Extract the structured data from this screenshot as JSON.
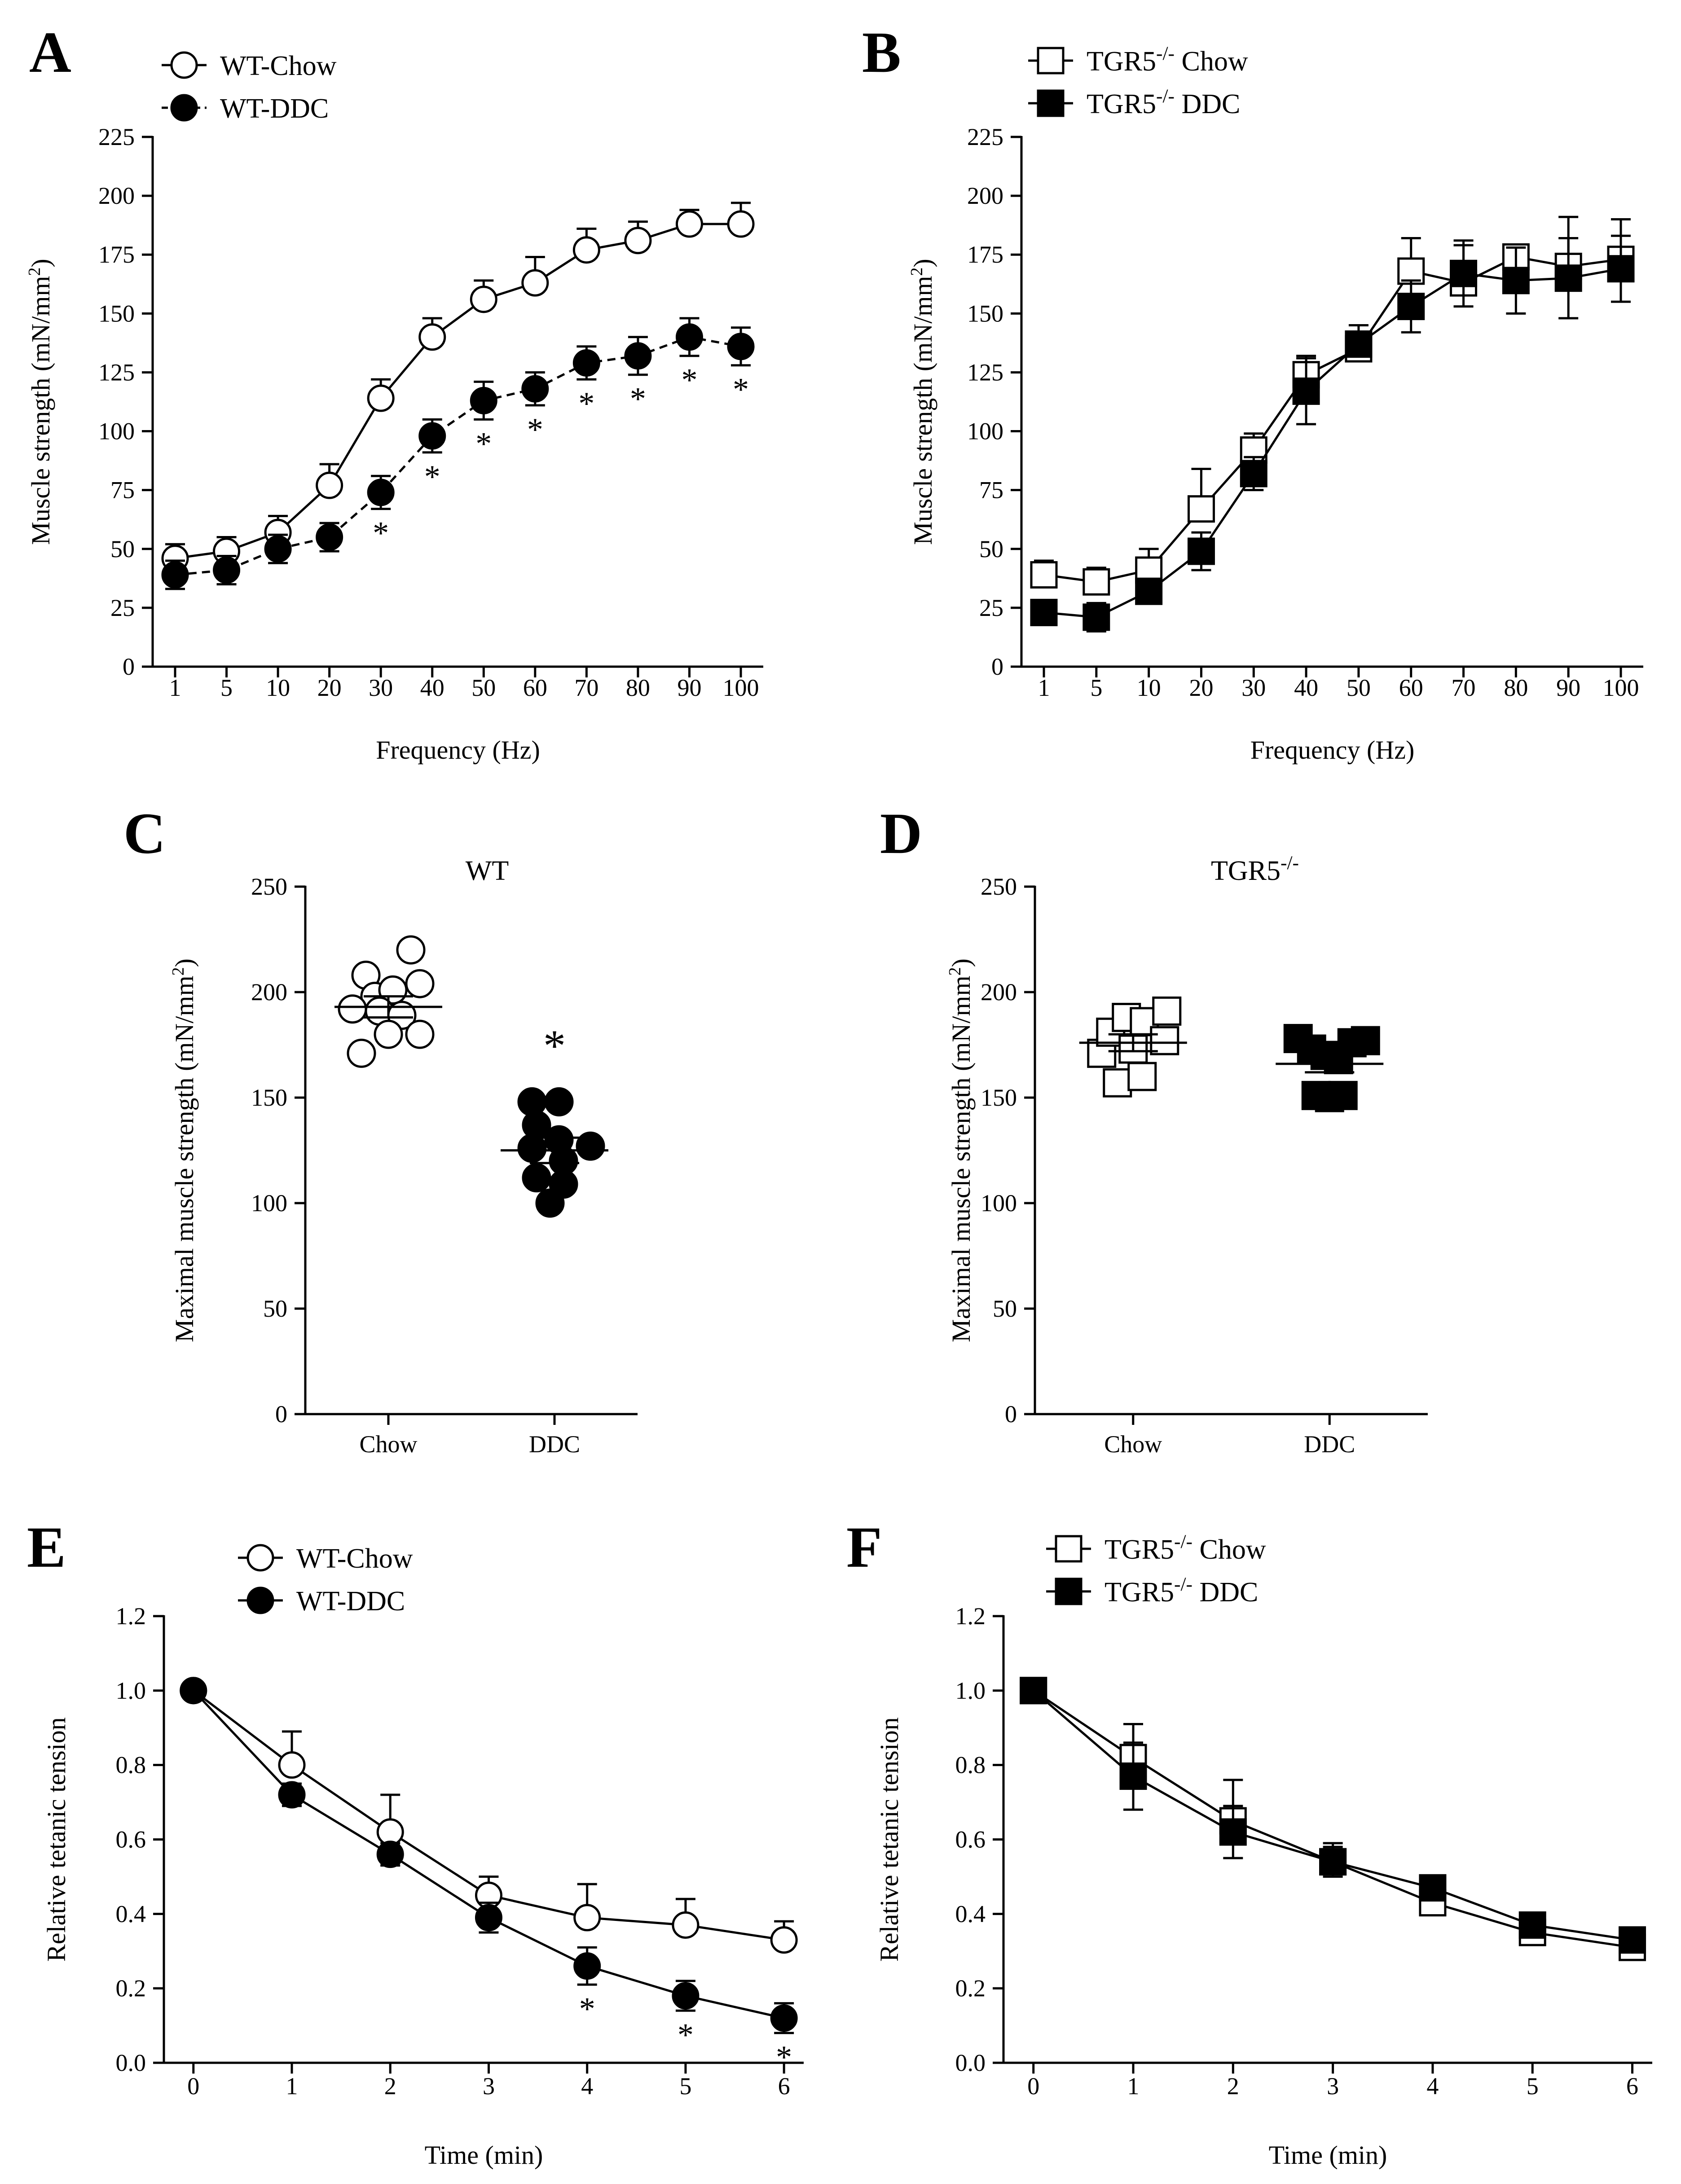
{
  "chart_data": [
    {
      "panel": "A",
      "type": "line",
      "title": "",
      "xlabel": "Frequency (Hz)",
      "ylabel": "Muscle strength (mN/mm²)",
      "categories": [
        "1",
        "5",
        "10",
        "20",
        "30",
        "40",
        "50",
        "60",
        "70",
        "80",
        "90",
        "100"
      ],
      "ylim": [
        0,
        225
      ],
      "yticks": [
        0,
        25,
        50,
        75,
        100,
        125,
        150,
        175,
        200,
        225
      ],
      "legend_position": "top-left",
      "series": [
        {
          "name": "WT-Chow",
          "marker": "circle",
          "fill": "#ffffff",
          "line": "solid",
          "values": [
            46,
            49,
            57,
            77,
            114,
            140,
            156,
            163,
            177,
            181,
            188,
            188
          ],
          "errors": [
            6,
            6,
            7,
            9,
            8,
            8,
            8,
            11,
            9,
            8,
            6,
            9
          ]
        },
        {
          "name": "WT-DDC",
          "marker": "circle",
          "fill": "#000000",
          "line": "dashed",
          "values": [
            39,
            41,
            50,
            55,
            74,
            98,
            113,
            118,
            129,
            132,
            140,
            136
          ],
          "errors": [
            6,
            6,
            6,
            6,
            7,
            7,
            8,
            7,
            7,
            8,
            8,
            8
          ]
        }
      ],
      "significance": {
        "series": "WT-DDC",
        "marker": "*",
        "categories": [
          "30",
          "40",
          "50",
          "60",
          "70",
          "80",
          "90",
          "100"
        ]
      }
    },
    {
      "panel": "B",
      "type": "line",
      "title": "",
      "xlabel": "Frequency (Hz)",
      "ylabel": "Muscle strength (mN/mm²)",
      "categories": [
        "1",
        "5",
        "10",
        "20",
        "30",
        "40",
        "50",
        "60",
        "70",
        "80",
        "90",
        "100"
      ],
      "ylim": [
        0,
        225
      ],
      "yticks": [
        0,
        25,
        50,
        75,
        100,
        125,
        150,
        175,
        200,
        225
      ],
      "legend_position": "top-left",
      "series": [
        {
          "name": "TGR5-/- Chow",
          "marker": "square",
          "fill": "#ffffff",
          "line": "solid",
          "values": [
            39,
            36,
            41,
            67,
            92,
            124,
            135,
            168,
            163,
            174,
            170,
            173
          ],
          "errors": [
            6,
            6,
            9,
            17,
            7,
            8,
            10,
            14,
            16,
            5,
            21,
            17
          ]
        },
        {
          "name": "TGR5-/- DDC",
          "marker": "square",
          "fill": "#000000",
          "line": "solid",
          "values": [
            23,
            21,
            32,
            49,
            82,
            117,
            137,
            153,
            167,
            164,
            165,
            169
          ],
          "errors": [
            3,
            6,
            5,
            8,
            7,
            14,
            5,
            11,
            14,
            14,
            17,
            14
          ]
        }
      ]
    },
    {
      "panel": "C",
      "type": "scatter",
      "title": "WT",
      "xlabel": "",
      "ylabel": "Maximal muscle strength (mN/mm²)",
      "categories": [
        "Chow",
        "DDC"
      ],
      "ylim": [
        0,
        250
      ],
      "yticks": [
        0,
        50,
        100,
        150,
        200,
        250
      ],
      "series": [
        {
          "name": "Chow",
          "marker": "circle",
          "fill": "#ffffff",
          "points": [
            [
              -0.5,
              208
            ],
            [
              0.5,
              220
            ],
            [
              -0.3,
              198
            ],
            [
              0.1,
              201
            ],
            [
              0.7,
              204
            ],
            [
              -0.8,
              192
            ],
            [
              -0.2,
              191
            ],
            [
              0.3,
              189
            ],
            [
              -0.6,
              171
            ],
            [
              0.0,
              180
            ],
            [
              0.7,
              180
            ]
          ],
          "mean": 193,
          "sem": 5
        },
        {
          "name": "DDC",
          "marker": "circle",
          "fill": "#000000",
          "points": [
            [
              -0.5,
              148
            ],
            [
              0.1,
              148
            ],
            [
              -0.4,
              137
            ],
            [
              -0.5,
              126
            ],
            [
              0.1,
              130
            ],
            [
              0.8,
              127
            ],
            [
              0.2,
              120
            ],
            [
              -0.4,
              112
            ],
            [
              0.2,
              109
            ],
            [
              -0.1,
              100
            ]
          ],
          "mean": 125,
          "sem": 6
        }
      ],
      "significance": {
        "category": "DDC",
        "marker": "*",
        "value": 175
      }
    },
    {
      "panel": "D",
      "type": "scatter",
      "title": "TGR5-/-",
      "xlabel": "",
      "ylabel": "Maximal muscle strength (mN/mm²)",
      "categories": [
        "Chow",
        "DDC"
      ],
      "ylim": [
        0,
        250
      ],
      "yticks": [
        0,
        50,
        100,
        150,
        200,
        250
      ],
      "series": [
        {
          "name": "Chow",
          "marker": "square",
          "fill": "#ffffff",
          "points": [
            [
              -0.7,
              171
            ],
            [
              -0.5,
              181
            ],
            [
              -0.15,
              188
            ],
            [
              0.25,
              186
            ],
            [
              0.0,
              173
            ],
            [
              0.7,
              177
            ],
            [
              0.75,
              191
            ],
            [
              -0.35,
              157
            ],
            [
              0.2,
              160
            ]
          ],
          "mean": 176,
          "sem": 4
        },
        {
          "name": "DDC",
          "marker": "square",
          "fill": "#000000",
          "points": [
            [
              -0.7,
              178
            ],
            [
              -0.4,
              173
            ],
            [
              -0.1,
              170
            ],
            [
              0.2,
              168
            ],
            [
              0.5,
              176
            ],
            [
              0.8,
              177
            ],
            [
              -0.3,
              151
            ],
            [
              0.0,
              150
            ],
            [
              0.3,
              151
            ]
          ],
          "mean": 166,
          "sem": 4
        }
      ]
    },
    {
      "panel": "E",
      "type": "line",
      "title": "",
      "xlabel": "Time (min)",
      "ylabel": "Relative tetanic tension",
      "x": [
        0,
        1,
        2,
        3,
        4,
        5,
        6
      ],
      "xlim": [
        -0.3,
        6.2
      ],
      "ylim": [
        0,
        1.2
      ],
      "yticks": [
        0.0,
        0.2,
        0.4,
        0.6,
        0.8,
        1.0,
        1.2
      ],
      "legend_position": "top",
      "series": [
        {
          "name": "WT-Chow",
          "marker": "circle",
          "fill": "#ffffff",
          "line": "solid",
          "values": [
            1.0,
            0.8,
            0.62,
            0.45,
            0.39,
            0.37,
            0.33
          ],
          "errors": [
            0.0,
            0.09,
            0.1,
            0.05,
            0.09,
            0.07,
            0.05
          ]
        },
        {
          "name": "WT-DDC",
          "marker": "circle",
          "fill": "#000000",
          "line": "solid",
          "values": [
            1.0,
            0.72,
            0.56,
            0.39,
            0.26,
            0.18,
            0.12
          ],
          "errors": [
            0.0,
            0.03,
            0.03,
            0.04,
            0.05,
            0.04,
            0.04
          ]
        }
      ],
      "significance": {
        "series": "WT-DDC",
        "marker": "*",
        "x": [
          4,
          5,
          6
        ]
      }
    },
    {
      "panel": "F",
      "type": "line",
      "title": "",
      "xlabel": "Time (min)",
      "ylabel": "Relative tetanic tension",
      "x": [
        0,
        1,
        2,
        3,
        4,
        5,
        6
      ],
      "xlim": [
        -0.3,
        6.2
      ],
      "ylim": [
        0,
        1.2
      ],
      "yticks": [
        0.0,
        0.2,
        0.4,
        0.6,
        0.8,
        1.0,
        1.2
      ],
      "legend_position": "top",
      "series": [
        {
          "name": "TGR5-/- Chow",
          "marker": "square",
          "fill": "#ffffff",
          "line": "solid",
          "values": [
            1.0,
            0.82,
            0.65,
            0.54,
            0.43,
            0.35,
            0.31
          ],
          "errors": [
            0.0,
            0.09,
            0.11,
            0.05,
            0.04,
            0.03,
            0.05
          ]
        },
        {
          "name": "TGR5-/- DDC",
          "marker": "square",
          "fill": "#000000",
          "line": "solid",
          "values": [
            1.0,
            0.77,
            0.62,
            0.54,
            0.47,
            0.37,
            0.33
          ],
          "errors": [
            0.0,
            0.09,
            0.07,
            0.04,
            0.02,
            0.03,
            0.03
          ]
        }
      ]
    }
  ]
}
